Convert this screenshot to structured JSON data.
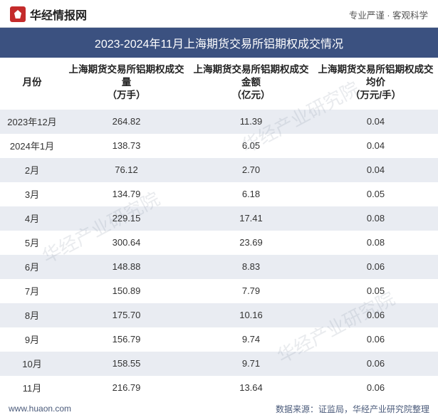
{
  "header": {
    "logo_text": "华经情报网",
    "tagline": "专业严谨 · 客观科学"
  },
  "title": "2023-2024年11月上海期货交易所铝期权成交情况",
  "table": {
    "columns": [
      "月份",
      "上海期货交易所铝期权成交量\n（万手）",
      "上海期货交易所铝期权成交金额\n（亿元）",
      "上海期货交易所铝期权成交均价\n（万元/手）"
    ],
    "rows": [
      [
        "2023年12月",
        "264.82",
        "11.39",
        "0.04"
      ],
      [
        "2024年1月",
        "138.73",
        "6.05",
        "0.04"
      ],
      [
        "2月",
        "76.12",
        "2.70",
        "0.04"
      ],
      [
        "3月",
        "134.79",
        "6.18",
        "0.05"
      ],
      [
        "4月",
        "229.15",
        "17.41",
        "0.08"
      ],
      [
        "5月",
        "300.64",
        "23.69",
        "0.08"
      ],
      [
        "6月",
        "148.88",
        "8.83",
        "0.06"
      ],
      [
        "7月",
        "150.89",
        "7.79",
        "0.05"
      ],
      [
        "8月",
        "175.70",
        "10.16",
        "0.06"
      ],
      [
        "9月",
        "156.79",
        "9.74",
        "0.06"
      ],
      [
        "10月",
        "158.55",
        "9.71",
        "0.06"
      ],
      [
        "11月",
        "216.79",
        "13.64",
        "0.06"
      ]
    ],
    "odd_row_bg": "#e9ecf2",
    "even_row_bg": "#ffffff",
    "header_font_size": 13.5,
    "cell_font_size": 13
  },
  "footer": {
    "url": "www.huaon.com",
    "source": "数据来源：证监局，华经产业研究院整理"
  },
  "watermark_text": "华经产业研究院",
  "colors": {
    "title_bg": "#3b5180",
    "title_fg": "#ffffff",
    "logo_bg": "#c42b2b",
    "border": "#d0d4db",
    "text": "#333333",
    "footer_text": "#4a5a7a"
  }
}
